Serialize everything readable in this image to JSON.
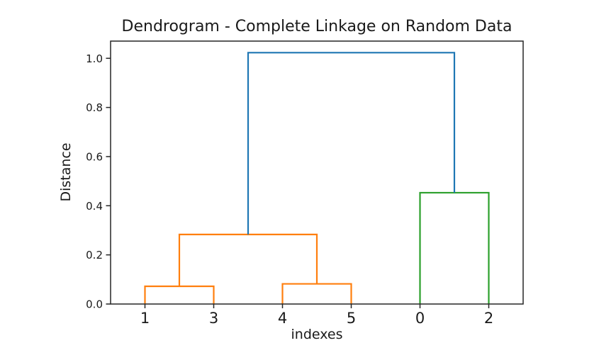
{
  "chart_data": {
    "type": "dendrogram",
    "title": "Dendrogram - Complete Linkage on Random Data",
    "xlabel": "indexes",
    "ylabel": "Distance",
    "xlim": [
      0,
      60
    ],
    "ylim": [
      0,
      1.07
    ],
    "yticks": [
      0.0,
      0.2,
      0.4,
      0.6,
      0.8,
      1.0
    ],
    "ytick_labels": [
      "0.0",
      "0.2",
      "0.4",
      "0.6",
      "0.8",
      "1.0"
    ],
    "leaves": [
      {
        "label": "1",
        "x": 5
      },
      {
        "label": "3",
        "x": 15
      },
      {
        "label": "4",
        "x": 25
      },
      {
        "label": "5",
        "x": 35
      },
      {
        "label": "0",
        "x": 45
      },
      {
        "label": "2",
        "x": 55
      }
    ],
    "links": [
      {
        "name": "merge-1-3",
        "color": "#ff7f0e",
        "x": [
          5,
          5,
          15,
          15
        ],
        "y": [
          0,
          0.072,
          0.072,
          0
        ]
      },
      {
        "name": "merge-4-5",
        "color": "#ff7f0e",
        "x": [
          25,
          25,
          35,
          35
        ],
        "y": [
          0,
          0.082,
          0.082,
          0
        ]
      },
      {
        "name": "merge-13-45",
        "color": "#ff7f0e",
        "x": [
          10,
          10,
          30,
          30
        ],
        "y": [
          0.072,
          0.283,
          0.283,
          0.082
        ]
      },
      {
        "name": "merge-0-2",
        "color": "#2ca02c",
        "x": [
          45,
          45,
          55,
          55
        ],
        "y": [
          0,
          0.453,
          0.453,
          0
        ]
      },
      {
        "name": "merge-root",
        "color": "#1f77b4",
        "x": [
          20,
          20,
          50,
          50
        ],
        "y": [
          0.283,
          1.023,
          1.023,
          0.453
        ]
      }
    ],
    "colors": {
      "cluster_left": "#ff7f0e",
      "cluster_right": "#2ca02c",
      "root_link": "#1f77b4",
      "axis": "#262626"
    },
    "grid": false,
    "legend_position": "none"
  }
}
